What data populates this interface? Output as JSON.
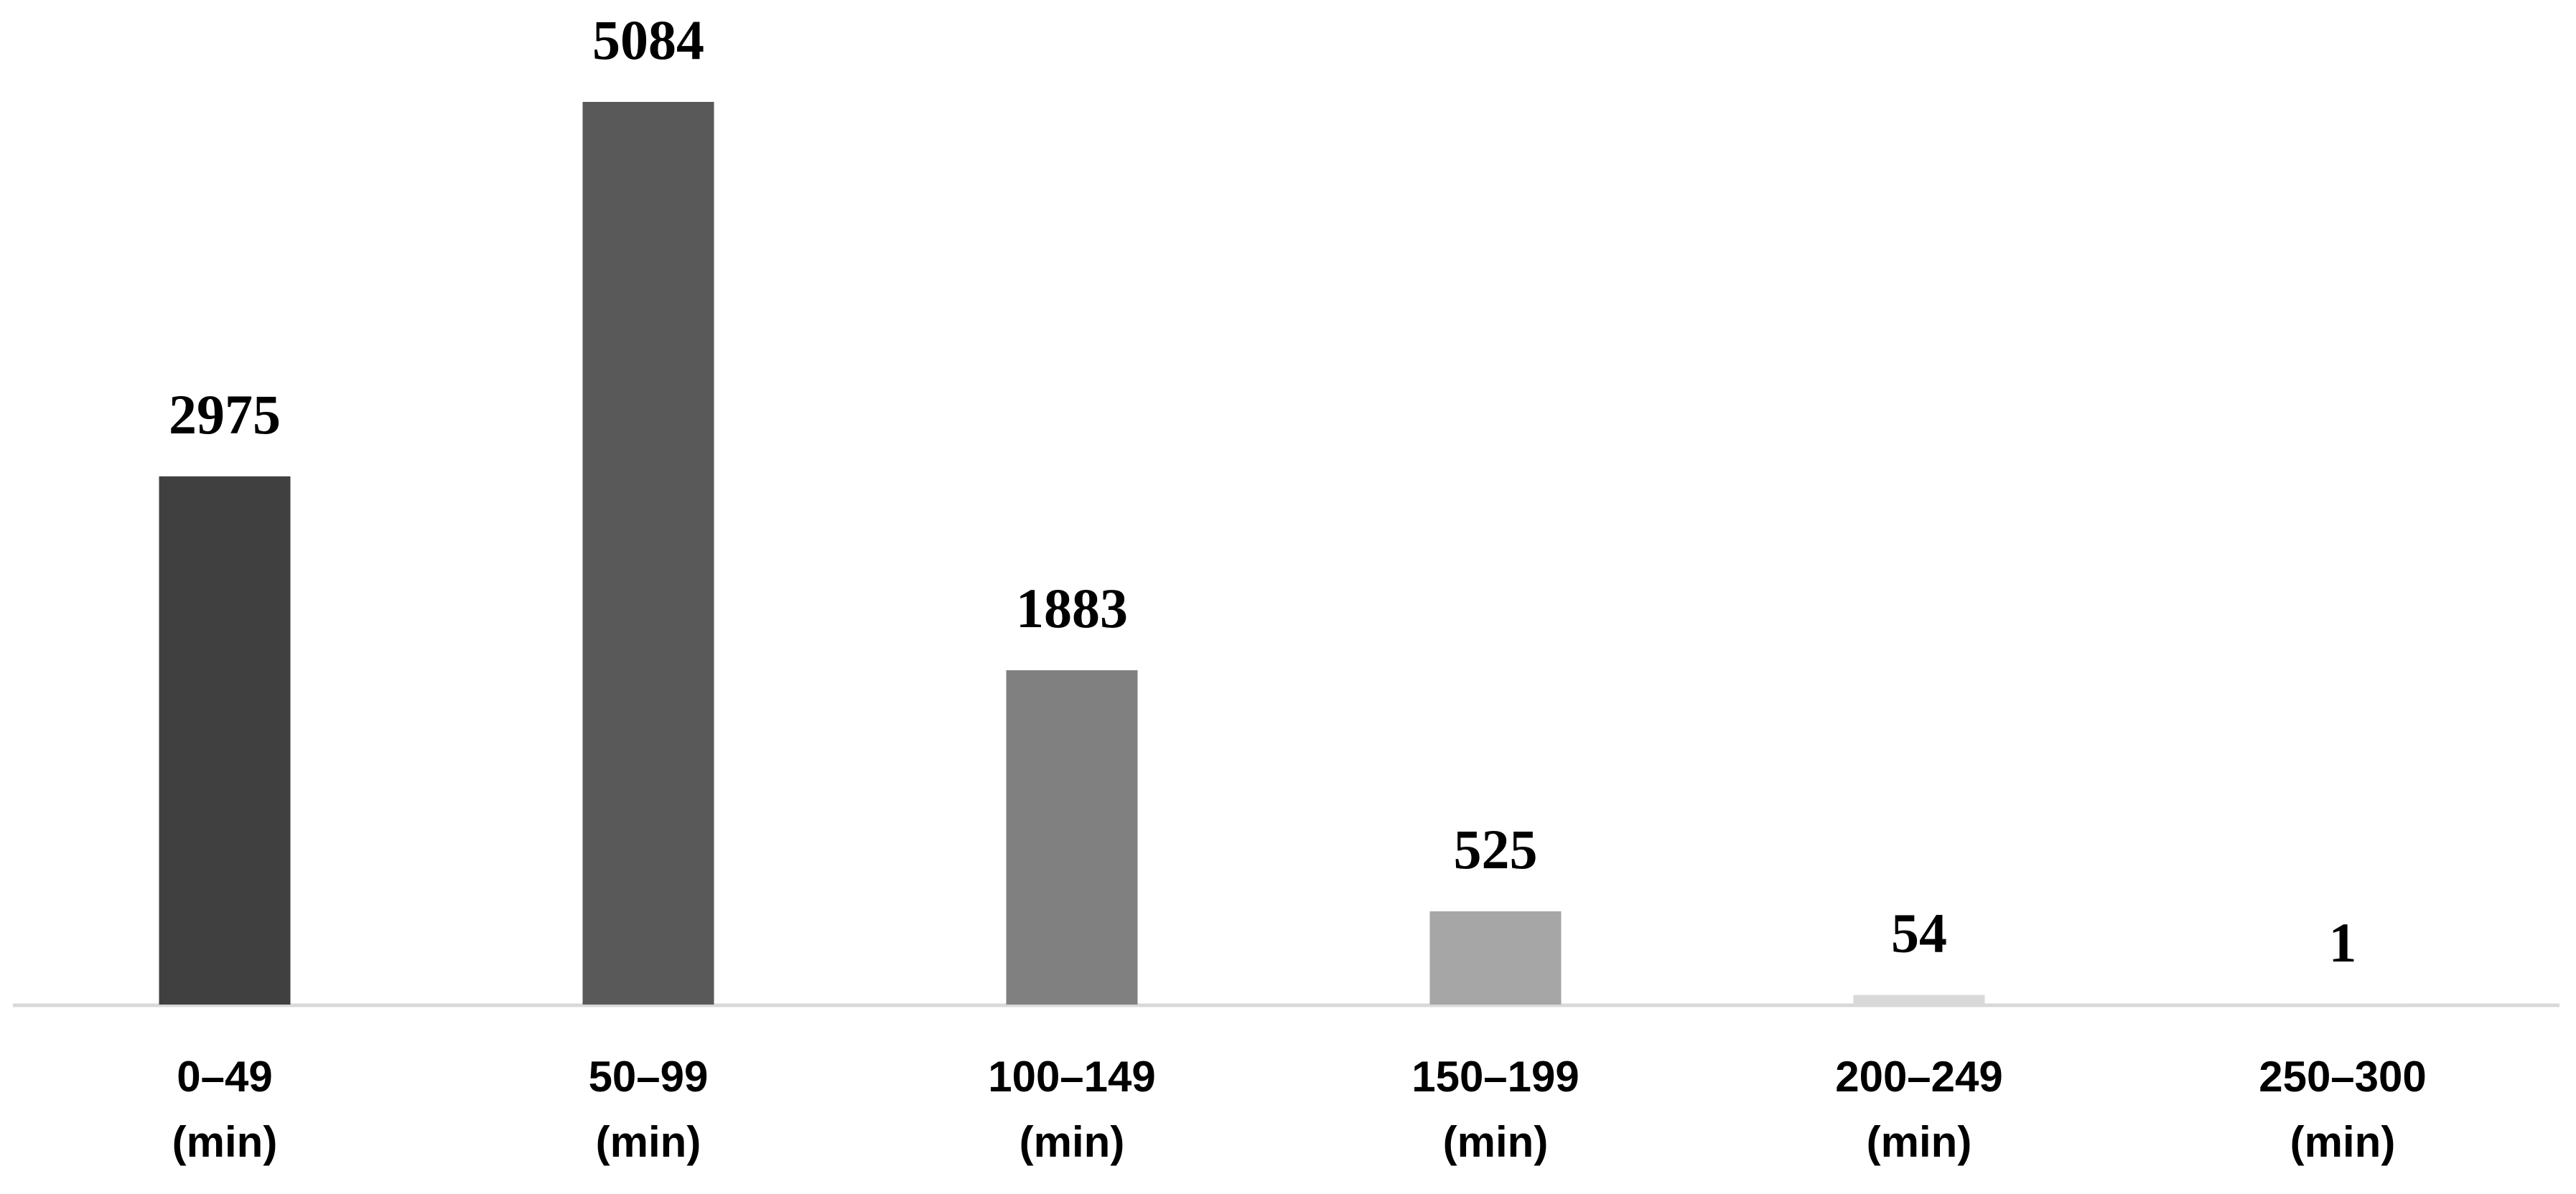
{
  "chart_data": {
    "type": "bar",
    "categories": [
      "0–49\n(min)",
      "50–99\n(min)",
      "100–149\n(min)",
      "150–199\n(min)",
      "200–249\n(min)",
      "250–300\n(min)"
    ],
    "values": [
      2975,
      5084,
      1883,
      525,
      54,
      1
    ],
    "colors": [
      "#404040",
      "#595959",
      "#808080",
      "#a6a6a6",
      "#d9d9d9",
      "#f2f2f2"
    ],
    "ylim": [
      0,
      5084
    ]
  }
}
